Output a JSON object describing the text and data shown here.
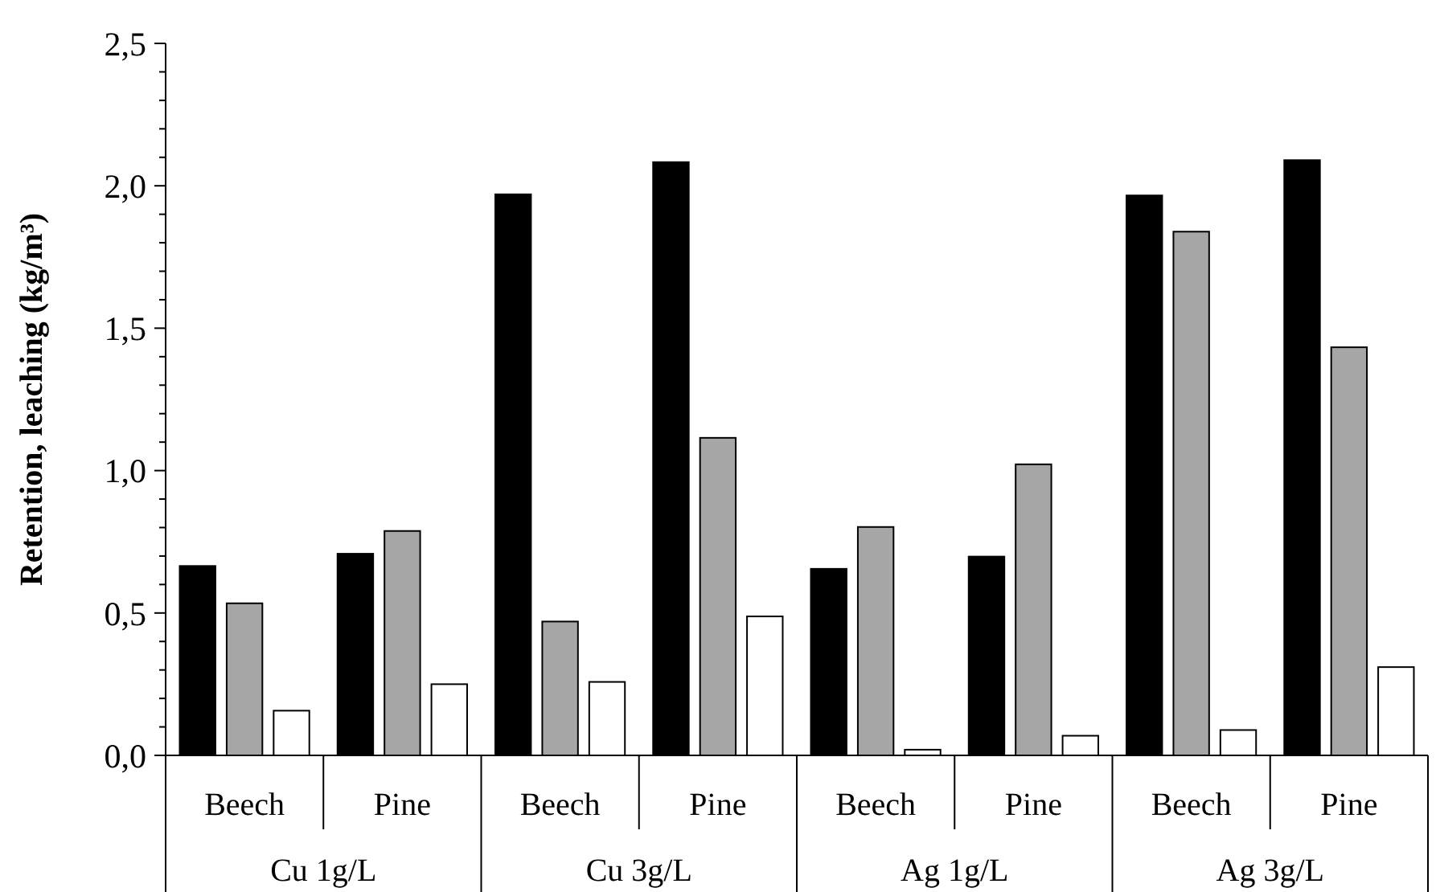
{
  "chart_data": {
    "type": "bar",
    "ylabel": "Retention, leaching (kg/m³)",
    "categories": [
      "Beech",
      "Pine",
      "Beech",
      "Pine",
      "Beech",
      "Pine",
      "Beech",
      "Pine"
    ],
    "annotations": [
      "Cu 1g/L",
      "Cu 3g/L",
      "Ag 1g/L",
      "Ag 3g/L"
    ],
    "series": [
      {
        "color": "#000000",
        "values": [
          0.665,
          0.708,
          1.97,
          2.083,
          0.655,
          0.698,
          1.966,
          2.09
        ]
      },
      {
        "color": "#a6a6a6",
        "values": [
          0.534,
          0.788,
          0.47,
          1.115,
          0.802,
          1.022,
          1.839,
          1.433
        ]
      },
      {
        "color": "#ffffff",
        "values": [
          0.157,
          0.25,
          0.258,
          0.488,
          0.02,
          0.069,
          0.089,
          0.31
        ]
      }
    ],
    "ylim": [
      0,
      2.5
    ],
    "yticks": [
      {
        "value": 0,
        "label": "0,0"
      },
      {
        "value": 0.1,
        "label": null
      },
      {
        "value": 0.2,
        "label": null
      },
      {
        "value": 0.3,
        "label": null
      },
      {
        "value": 0.4,
        "label": null
      },
      {
        "value": 0.5,
        "label": "0,5"
      },
      {
        "value": 0.6,
        "label": null
      },
      {
        "value": 0.7,
        "label": null
      },
      {
        "value": 0.8,
        "label": null
      },
      {
        "value": 0.9,
        "label": null
      },
      {
        "value": 1,
        "label": "1,0"
      },
      {
        "value": 1.1,
        "label": null
      },
      {
        "value": 1.2,
        "label": null
      },
      {
        "value": 1.3,
        "label": null
      },
      {
        "value": 1.4,
        "label": null
      },
      {
        "value": 1.5,
        "label": "1,5"
      },
      {
        "value": 1.6,
        "label": null
      },
      {
        "value": 1.7,
        "label": null
      },
      {
        "value": 1.8,
        "label": null
      },
      {
        "value": 1.9,
        "label": null
      },
      {
        "value": 2,
        "label": "2,0"
      },
      {
        "value": 2.1,
        "label": null
      },
      {
        "value": 2.2,
        "label": null
      },
      {
        "value": 2.3,
        "label": null
      },
      {
        "value": 2.4,
        "label": null
      },
      {
        "value": 2.5,
        "label": "2,5"
      }
    ]
  }
}
